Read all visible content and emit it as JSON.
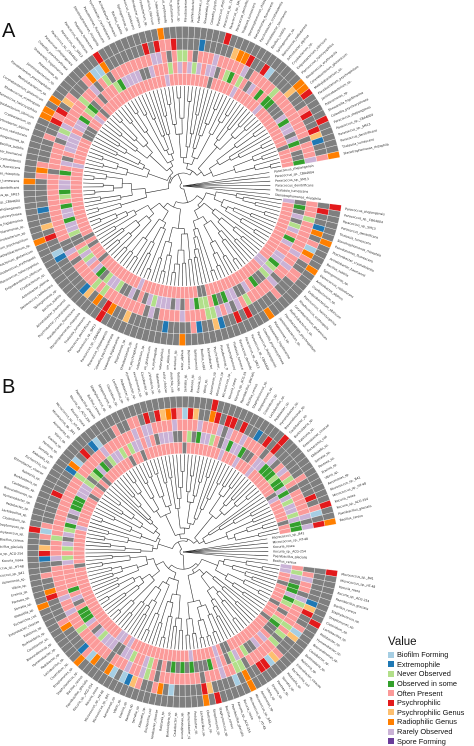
{
  "panels": [
    {
      "label": "A"
    },
    {
      "label": "B"
    }
  ],
  "legend": {
    "title": "Value",
    "items": [
      {
        "label": "Biofilm Forming",
        "color": "#a6cee3"
      },
      {
        "label": "Extremophile",
        "color": "#1f78b4"
      },
      {
        "label": "Never Observed",
        "color": "#b2df8a"
      },
      {
        "label": "Observed in some",
        "color": "#33a02c"
      },
      {
        "label": "Often Present",
        "color": "#fb9a99"
      },
      {
        "label": "Psychrophilic",
        "color": "#e31a1c"
      },
      {
        "label": "Psychrophilic Genus",
        "color": "#fdbf6f"
      },
      {
        "label": "Radiophilic Genus",
        "color": "#ff7f00"
      },
      {
        "label": "Rarely Observed",
        "color": "#cab2d6"
      },
      {
        "label": "Spore Forming",
        "color": "#6a3d9a"
      }
    ],
    "na_color": "#7f7f7f"
  },
  "tip_labels": {
    "panel_a": [
      "Paracoccus_zhejiangensis",
      "Paracoccus_sp._CBA4604",
      "Paracoccus_sp._SM13",
      "Paracoccus_denitrificans",
      "Thalassia_tumescens",
      "Stenotrophomonas_rhizophila",
      "Pseudomonas_fluorescens",
      "Psychrobacter_cryohalolentis",
      "Acinetobacter_baumannii",
      "Bacillus_subtilis",
      "Sphingomonas_sp.",
      "Deinococcus_radiodurans",
      "Arthrobacter_alpinus",
      "Cryobacterium_sp.",
      "Exiguobacterium_sibiricum",
      "Planococcus_halocryophilus",
      "Rhodococcus_erythropolis",
      "Corynebacterium_glutamicum",
      "Methylobacterium_sp.",
      "Flavobacterium_psychrophilum",
      "Janthinobacterium_sp.",
      "Polaromonas_sp.",
      "Shewanella_frigidimarina",
      "Colwellia_psychrerythraea"
    ],
    "panel_b": [
      "Micrococcus_sp._B41",
      "Micrococcus_sp._HT-48",
      "Kocuria_rosea",
      "Kocuria_sp._ACG-254",
      "Paenibacillus_glacialis",
      "Bacillus_cereus",
      "Staphylococcus_sp.",
      "Streptomyces_sp.",
      "Clostridium_sp.",
      "Lactobacillus_sp.",
      "Pedobacter_sp.",
      "Hymenobacter_sp.",
      "Brevundimonas_sp.",
      "Caulobacter_sp.",
      "Burkholderia_sp.",
      "Ralstonia_sp.",
      "Enterobacter_cloacae",
      "Escherichia_coli",
      "Klebsiella_sp.",
      "Serratia_sp.",
      "Pantoea_sp.",
      "Erwinia_sp.",
      "Vibrio_sp.",
      "Aeromonas_sp."
    ]
  }
}
